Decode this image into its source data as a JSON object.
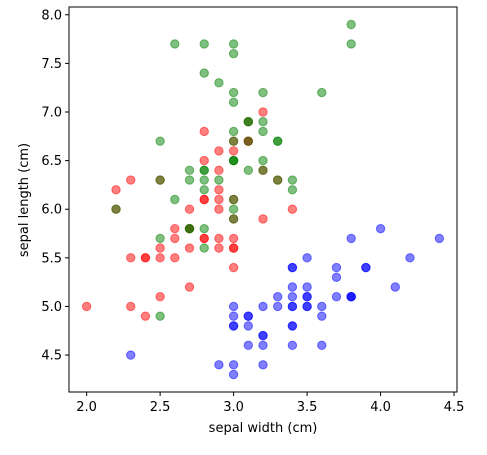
{
  "chart_data": {
    "type": "scatter",
    "title": "",
    "xlabel": "sepal width (cm)",
    "ylabel": "sepal length (cm)",
    "xlim": [
      1.88,
      4.52
    ],
    "ylim": [
      4.12,
      8.08
    ],
    "xticks": [
      2.0,
      2.5,
      3.0,
      3.5,
      4.0,
      4.5
    ],
    "xtick_labels": [
      "2.0",
      "2.5",
      "3.0",
      "3.5",
      "4.0",
      "4.5"
    ],
    "yticks": [
      4.5,
      5.0,
      5.5,
      6.0,
      6.5,
      7.0,
      7.5,
      8.0
    ],
    "ytick_labels": [
      "4.5",
      "5.0",
      "5.5",
      "6.0",
      "6.5",
      "7.0",
      "7.5",
      "8.0"
    ],
    "grid": false,
    "alpha": 0.5,
    "series": [
      {
        "color": "#0000ff",
        "x": [
          3.5,
          3.0,
          3.2,
          3.1,
          3.6,
          3.9,
          3.4,
          3.4,
          2.9,
          3.1,
          3.7,
          3.4,
          3.0,
          3.0,
          4.0,
          4.4,
          3.9,
          3.5,
          3.8,
          3.8,
          3.4,
          3.7,
          3.6,
          3.3,
          3.4,
          3.0,
          3.4,
          3.5,
          3.4,
          3.2,
          3.1,
          3.4,
          4.1,
          4.2,
          3.1,
          3.2,
          3.5,
          3.6,
          3.0,
          3.4,
          3.5,
          2.3,
          3.2,
          3.5,
          3.8,
          3.0,
          3.8,
          3.2,
          3.7,
          3.3
        ],
        "y": [
          5.1,
          4.9,
          4.7,
          4.6,
          5.0,
          5.4,
          4.6,
          5.0,
          4.4,
          4.9,
          5.4,
          4.8,
          4.8,
          4.3,
          5.8,
          5.7,
          5.4,
          5.1,
          5.7,
          5.1,
          5.4,
          5.1,
          4.6,
          5.1,
          4.8,
          5.0,
          5.0,
          5.2,
          5.2,
          4.7,
          4.8,
          5.4,
          5.2,
          5.5,
          4.9,
          5.0,
          5.5,
          4.9,
          4.4,
          5.1,
          5.0,
          4.5,
          4.4,
          5.0,
          5.1,
          4.8,
          5.1,
          4.6,
          5.3,
          5.0
        ]
      },
      {
        "color": "#ff0000",
        "x": [
          3.2,
          3.2,
          3.1,
          2.3,
          2.8,
          2.8,
          3.3,
          2.4,
          2.9,
          2.7,
          2.0,
          3.0,
          2.2,
          2.9,
          2.9,
          3.1,
          3.0,
          2.7,
          2.2,
          2.5,
          3.2,
          2.8,
          2.5,
          2.8,
          2.9,
          3.0,
          2.8,
          3.0,
          2.9,
          2.6,
          2.4,
          2.4,
          2.7,
          2.7,
          3.0,
          3.4,
          3.1,
          2.3,
          3.0,
          2.5,
          2.6,
          3.0,
          2.6,
          2.3,
          2.7,
          3.0,
          2.9,
          2.9,
          2.5,
          2.8
        ],
        "y": [
          7.0,
          6.4,
          6.9,
          5.5,
          6.5,
          5.7,
          6.3,
          4.9,
          6.6,
          5.2,
          5.0,
          5.9,
          6.0,
          6.1,
          5.6,
          6.7,
          5.6,
          5.8,
          6.2,
          5.6,
          5.9,
          6.1,
          6.3,
          6.1,
          6.4,
          6.6,
          6.8,
          6.7,
          6.0,
          5.7,
          5.5,
          5.5,
          5.8,
          6.0,
          5.4,
          6.0,
          6.7,
          6.3,
          5.6,
          5.5,
          5.5,
          6.1,
          5.8,
          5.0,
          5.6,
          5.7,
          5.7,
          6.2,
          5.1,
          5.7
        ]
      },
      {
        "color": "#008000",
        "x": [
          3.3,
          2.7,
          3.0,
          2.9,
          3.0,
          3.0,
          2.5,
          2.9,
          2.5,
          3.6,
          3.2,
          2.7,
          3.0,
          2.5,
          2.8,
          3.2,
          3.0,
          3.8,
          2.6,
          2.2,
          3.2,
          2.8,
          2.8,
          2.7,
          3.3,
          3.2,
          2.8,
          3.0,
          2.8,
          3.0,
          2.8,
          3.8,
          2.8,
          2.8,
          2.6,
          3.0,
          3.4,
          3.1,
          3.0,
          3.1,
          3.1,
          3.1,
          2.7,
          3.2,
          3.3,
          3.0,
          2.5,
          3.0,
          3.4,
          3.0
        ],
        "y": [
          6.3,
          5.8,
          7.1,
          6.3,
          6.5,
          7.6,
          4.9,
          7.3,
          6.7,
          7.2,
          6.5,
          6.4,
          6.8,
          5.7,
          5.8,
          6.4,
          6.5,
          7.7,
          7.7,
          6.0,
          6.9,
          5.6,
          7.7,
          6.3,
          6.7,
          7.2,
          6.2,
          6.1,
          6.4,
          7.2,
          7.4,
          7.9,
          6.4,
          6.3,
          6.1,
          7.7,
          6.3,
          6.4,
          6.0,
          6.9,
          6.7,
          6.9,
          5.8,
          6.8,
          6.7,
          6.7,
          6.3,
          6.5,
          6.2,
          5.9
        ]
      }
    ]
  }
}
